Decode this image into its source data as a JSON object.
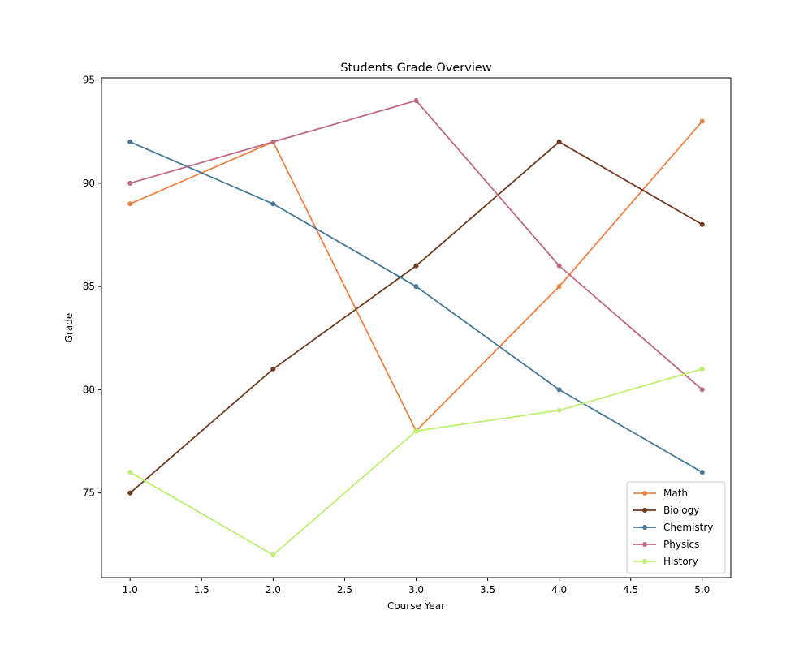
{
  "chart_data": {
    "type": "line",
    "title": "Students Grade Overview",
    "xlabel": "Course Year",
    "ylabel": "Grade",
    "x": [
      1,
      2,
      3,
      4,
      5
    ],
    "xlim": [
      0.8,
      5.2
    ],
    "ylim": [
      70.9,
      95.1
    ],
    "xticks": [
      "1.0",
      "1.5",
      "2.0",
      "2.5",
      "3.0",
      "3.5",
      "4.0",
      "4.5",
      "5.0"
    ],
    "yticks": [
      "75",
      "80",
      "85",
      "90",
      "95"
    ],
    "grid": false,
    "legend_position": "lower-right",
    "series": [
      {
        "name": "Math",
        "color": "#f08040",
        "values": [
          89,
          92,
          78,
          85,
          93
        ]
      },
      {
        "name": "Biology",
        "color": "#70391c",
        "values": [
          75,
          81,
          86,
          92,
          88
        ]
      },
      {
        "name": "Chemistry",
        "color": "#467899",
        "values": [
          92,
          89,
          85,
          80,
          76
        ]
      },
      {
        "name": "Physics",
        "color": "#c06880",
        "values": [
          90,
          92,
          94,
          86,
          80
        ]
      },
      {
        "name": "History",
        "color": "#bdf070",
        "values": [
          76,
          72,
          78,
          79,
          81
        ]
      }
    ]
  }
}
